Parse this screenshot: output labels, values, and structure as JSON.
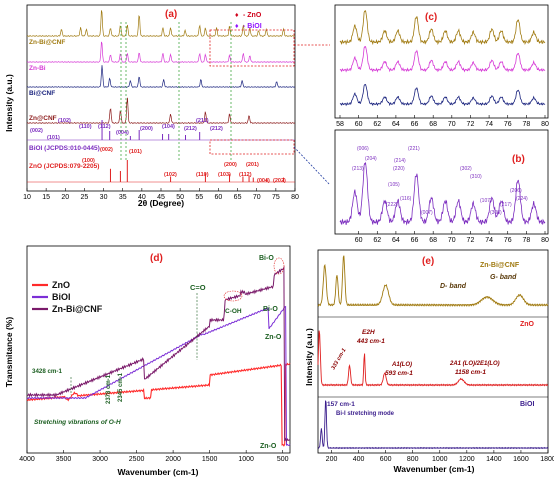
{
  "chart_data": [
    {
      "panel": "(a)",
      "type": "line",
      "xlabel": "2θ (Degree)",
      "ylabel": "Intensity (a.u.)",
      "xlim": [
        10,
        80
      ],
      "x_ticks": [
        "10",
        "15",
        "20",
        "25",
        "30",
        "35",
        "40",
        "45",
        "50",
        "55",
        "60",
        "65",
        "70",
        "75",
        "80"
      ],
      "legend": [
        {
          "marker": "♦",
          "label": "- ZnO",
          "color": "#d0021b"
        },
        {
          "marker": "♦",
          "label": "- BiOI",
          "color": "#9013fe"
        }
      ],
      "series": [
        {
          "name": "Zn-Bi@CNF",
          "color": "#a07a10",
          "peaks": [
            [
              19,
              0.25
            ],
            [
              24,
              0.3
            ],
            [
              25.5,
              0.25
            ],
            [
              29.5,
              1.0
            ],
            [
              31.8,
              0.3
            ],
            [
              34.4,
              0.4
            ],
            [
              36.2,
              0.4
            ],
            [
              39.3,
              0.8
            ],
            [
              45.5,
              0.3
            ],
            [
              47.5,
              0.3
            ],
            [
              51.3,
              0.2
            ],
            [
              55.1,
              0.4
            ],
            [
              56.6,
              0.3
            ],
            [
              59.5,
              0.3
            ],
            [
              62.9,
              0.35
            ],
            [
              66.5,
              0.4
            ],
            [
              68.2,
              0.3
            ],
            [
              70.5,
              0.2
            ],
            [
              72.5,
              0.25
            ],
            [
              77,
              0.25
            ]
          ]
        },
        {
          "name": "Zn-Bi",
          "color": "#d63ad6",
          "peaks": [
            [
              29.5,
              1.0
            ],
            [
              31.8,
              0.35
            ],
            [
              34.4,
              0.4
            ],
            [
              36.2,
              0.4
            ],
            [
              39.3,
              0.45
            ],
            [
              45.5,
              0.4
            ],
            [
              47.5,
              0.35
            ],
            [
              55.1,
              0.4
            ],
            [
              56.6,
              0.35
            ],
            [
              62.9,
              0.3
            ],
            [
              66.5,
              0.4
            ],
            [
              68.2,
              0.3
            ]
          ]
        },
        {
          "name": "Bi@CNF",
          "color": "#1a237e",
          "peaks": [
            [
              29.6,
              1.0
            ],
            [
              31.6,
              0.4
            ],
            [
              37.0,
              0.3
            ],
            [
              39.3,
              0.5
            ],
            [
              45.7,
              0.35
            ],
            [
              55.4,
              0.35
            ],
            [
              66.2,
              0.3
            ],
            [
              75.2,
              0.25
            ]
          ]
        },
        {
          "name": "Zn@CNF",
          "color": "#8b1a1a",
          "peaks": [
            [
              31.8,
              0.6
            ],
            [
              34.4,
              0.5
            ],
            [
              36.2,
              1.0
            ],
            [
              47.5,
              0.35
            ],
            [
              56.6,
              0.45
            ],
            [
              62.9,
              0.35
            ],
            [
              68.0,
              0.3
            ]
          ]
        },
        {
          "name": "BiOI (JCPDS:010-0445)",
          "color": "#7b2cbf",
          "peaks": [
            [
              29.6,
              1.0
            ],
            [
              31.6,
              0.45
            ],
            [
              37.0,
              0.2
            ],
            [
              39.3,
              0.5
            ],
            [
              45.4,
              0.3
            ],
            [
              47.0,
              0.3
            ],
            [
              51.4,
              0.25
            ],
            [
              55.1,
              0.4
            ]
          ]
        },
        {
          "name": "ZnO (JCPDS:079-2205)",
          "color": "#e02020",
          "peaks": [
            [
              31.8,
              0.6
            ],
            [
              34.4,
              0.5
            ],
            [
              36.2,
              1.0
            ],
            [
              47.5,
              0.25
            ],
            [
              56.6,
              0.4
            ],
            [
              62.9,
              0.35
            ],
            [
              66.4,
              0.25
            ],
            [
              68.0,
              0.3
            ],
            [
              69.1,
              0.2
            ],
            [
              72.6,
              0.15
            ],
            [
              77.0,
              0.2
            ]
          ]
        }
      ],
      "bi_hkl": [
        "(002)",
        "(101)",
        "(102)",
        "(110)",
        "(112)",
        "(004)",
        "(200)",
        "(104)",
        "(212)",
        "(211)",
        "(212)"
      ],
      "zno_hkl": [
        "(100)",
        "(002)",
        "(101)",
        "(102)",
        "(110)",
        "(103)",
        "(200)",
        "(112)",
        "(201)",
        "(004)",
        "(202)"
      ]
    },
    {
      "panel": "(c)",
      "type": "line",
      "xlim": [
        58,
        80
      ],
      "x_ticks": [
        "58",
        "60",
        "62",
        "64",
        "66",
        "68",
        "70",
        "72",
        "74",
        "76",
        "78",
        "80"
      ]
    },
    {
      "panel": "(b)",
      "type": "line",
      "xlim": [
        58,
        80
      ],
      "x_ticks": [
        "60",
        "62",
        "64",
        "66",
        "68",
        "70",
        "72",
        "74",
        "76",
        "78",
        "80"
      ],
      "hkl": [
        "(213)",
        "(006)",
        "(204)",
        "(105)",
        "(220)",
        "(214)",
        "(221)",
        "(116)",
        "(222)",
        "(007)",
        "(302)",
        "(310)",
        "(107)",
        "(303)",
        "(217)",
        "(206)",
        "(224)"
      ]
    },
    {
      "panel": "(d)",
      "type": "line",
      "xlabel": "Wavenumber (cm-1)",
      "ylabel": "Transmitance (%)",
      "xlim": [
        4000,
        400
      ],
      "x_ticks": [
        "4000",
        "3500",
        "3000",
        "2500",
        "2000",
        "1500",
        "1000",
        "500"
      ],
      "series": [
        {
          "name": "ZnO",
          "color": "#ff2a2a"
        },
        {
          "name": "BiOI",
          "color": "#7c2fd6"
        },
        {
          "name": "Zn-Bi@CNF",
          "color": "#7a1a6a"
        }
      ],
      "annotations": [
        "3428 cm-1",
        "2345 cm-1",
        "2378 cm-1",
        "C=O",
        "C-OH",
        "Bi-O",
        "Bi-O",
        "Zn-O",
        "Zn-O",
        "Stretching vibrations of O-H"
      ]
    },
    {
      "panel": "(e)",
      "type": "line",
      "xlabel": "Wavenumber (cm-1)",
      "ylabel": "Intensity (a.u.)",
      "xlim": [
        100,
        1800
      ],
      "x_ticks": [
        "200",
        "400",
        "600",
        "800",
        "1000",
        "1200",
        "1400",
        "1600",
        "1800"
      ],
      "series": [
        {
          "name": "Zn-Bi@CNF",
          "color": "#a07a10"
        },
        {
          "name": "ZnO",
          "color": "#e02020"
        },
        {
          "name": "BiOI",
          "color": "#3a1d8c"
        }
      ],
      "annotations": [
        "D- band",
        "G- band",
        "E2H",
        "443 cm-1",
        "A1(LO)",
        "593 cm-1",
        "2A1 (LO)/2E1(LO)",
        "1158 cm-1",
        "333 cm-1",
        "157 cm-1",
        "Bi-I stretching mode"
      ]
    }
  ]
}
